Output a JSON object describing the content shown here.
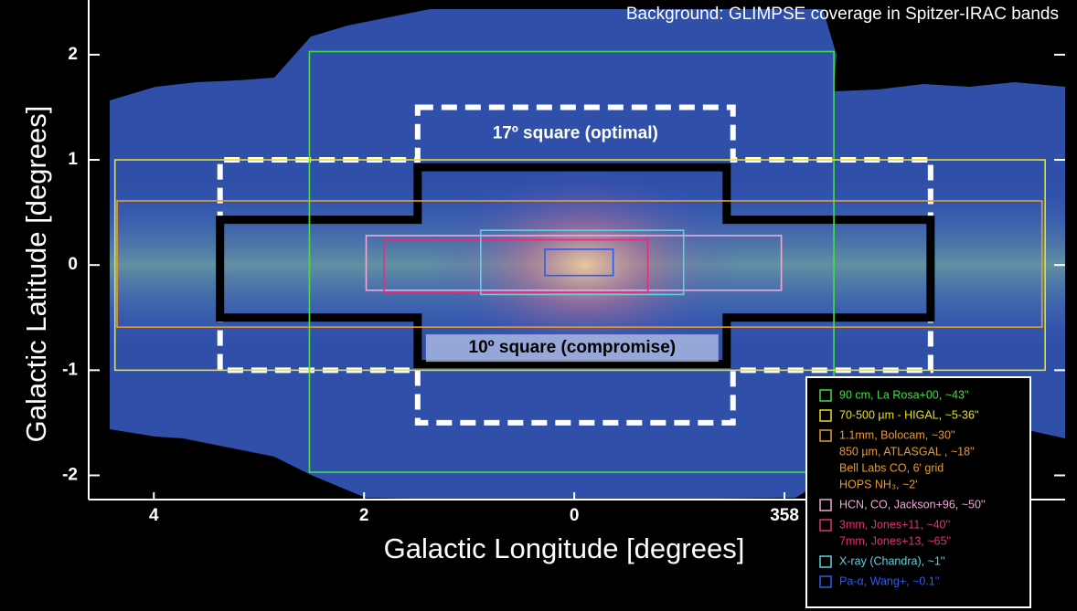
{
  "chart_data": {
    "type": "regions",
    "title": "Background: GLIMPSE coverage in Spitzer-IRAC bands",
    "x_label": "Galactic Longitude [degrees]",
    "y_label": "Galactic Latitude [degrees]",
    "xlim": [
      4.62,
      -4.67
    ],
    "ylim": [
      2.52,
      -2.23
    ],
    "xticks": [
      4,
      2,
      0,
      {
        "value": -2,
        "label": "358"
      }
    ],
    "yticks": [
      2,
      1,
      0,
      -1,
      -2
    ],
    "series": [
      {
        "color": "#44dd44",
        "labels": [
          "90 cm, La Rosa+00, ~43''"
        ],
        "x": [
          2.52,
          -2.47
        ],
        "y": [
          2.03,
          -1.97
        ]
      },
      {
        "color": "#e8e020",
        "labels": [
          "70-500 µm - HIGAL,  ~5-36''"
        ],
        "x": [
          4.37,
          -4.48
        ],
        "y": [
          1,
          -1
        ]
      },
      {
        "color": "#e89a30",
        "labels": [
          "1.1mm, Bolocam, ~30''",
          "850 µm, ATLASGAL , ~18''",
          "Bell Labs CO, 6' grid",
          "HOPS NH₃, ~2'"
        ],
        "x": [
          4.35,
          -4.45
        ],
        "y": [
          0.61,
          -0.59
        ]
      },
      {
        "color": "#f0a8d8",
        "labels": [
          "HCN, CO, Jackson+96, ~50''"
        ],
        "x": [
          1.98,
          -1.97
        ],
        "y": [
          0.28,
          -0.24
        ]
      },
      {
        "color": "#e0307a",
        "labels": [
          "3mm, Jones+11, ~40''",
          "7mm, Jones+13, ~65''"
        ],
        "x": [
          1.81,
          -0.7
        ],
        "y": [
          0.24,
          -0.26
        ]
      },
      {
        "color": "#60d0e0",
        "labels": [
          "X-ray (Chandra), ~1''"
        ],
        "x": [
          0.89,
          -1.04
        ],
        "y": [
          0.33,
          -0.28
        ]
      },
      {
        "color": "#2a5cf0",
        "labels": [
          "Pa-α, Wang+, ~0.1''"
        ],
        "x": [
          0.28,
          -0.37
        ],
        "y": [
          0.15,
          -0.1
        ]
      }
    ],
    "shapes": [
      {
        "label": "17º square (optimal)",
        "color": "#ffffff",
        "style": "dashed",
        "x": [
          1.49,
          -1.51,
          -1.51,
          -3.39,
          -3.39,
          -1.51,
          -1.51,
          1.49,
          1.49,
          3.37,
          3.37,
          1.49
        ],
        "y": [
          1.5,
          1.5,
          1,
          1,
          -1,
          -1,
          -1.5,
          -1.5,
          -1,
          -1,
          1,
          1
        ]
      },
      {
        "label": "10º square (compromise)",
        "color": "#000000",
        "style": "solid",
        "x": [
          1.49,
          -1.45,
          -1.45,
          -3.39,
          -3.39,
          -1.45,
          -1.45,
          1.49,
          1.49,
          3.37,
          3.37,
          1.49
        ],
        "y": [
          0.93,
          0.93,
          0.43,
          0.43,
          -0.5,
          -0.5,
          -0.94,
          -0.94,
          -0.5,
          -0.5,
          0.43,
          0.43
        ]
      }
    ]
  }
}
